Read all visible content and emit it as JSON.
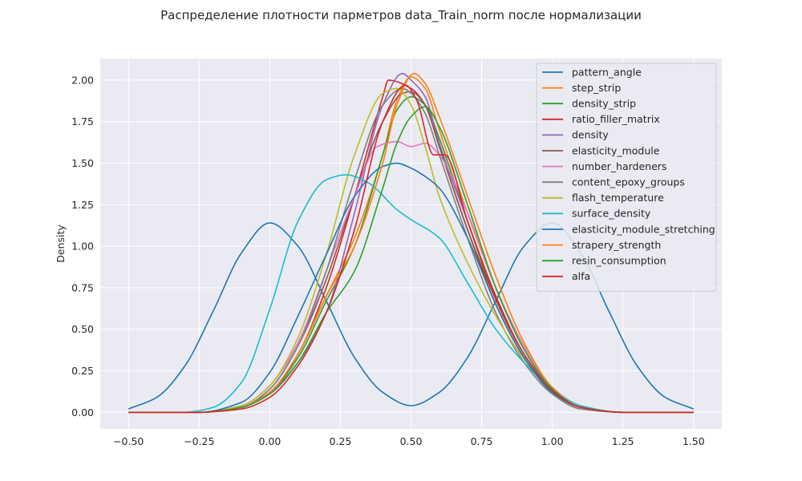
{
  "chart_data": {
    "type": "line",
    "title": "Распределение плотности парметров data_Train_norm после нормализации",
    "xlabel": "",
    "ylabel": "Density",
    "xlim": [
      -0.6,
      1.6
    ],
    "ylim": [
      -0.1,
      2.13
    ],
    "xticks": [
      -0.5,
      -0.25,
      0.0,
      0.25,
      0.5,
      0.75,
      1.0,
      1.25,
      1.5
    ],
    "xtick_labels": [
      "−0.50",
      "−0.25",
      "0.00",
      "0.25",
      "0.50",
      "0.75",
      "1.00",
      "1.25",
      "1.50"
    ],
    "yticks": [
      0.0,
      0.25,
      0.5,
      0.75,
      1.0,
      1.25,
      1.5,
      1.75,
      2.0
    ],
    "ytick_labels": [
      "0.00",
      "0.25",
      "0.50",
      "0.75",
      "1.00",
      "1.25",
      "1.50",
      "1.75",
      "2.00"
    ],
    "grid": true,
    "legend_position": "top-right",
    "background": "#eaeaf2",
    "series": [
      {
        "name": "pattern_angle",
        "color": "#1f77b4",
        "x": [
          -0.5,
          -0.4,
          -0.3,
          -0.2,
          -0.1,
          0.0,
          0.1,
          0.2,
          0.3,
          0.4,
          0.5,
          0.6,
          0.7,
          0.8,
          0.9,
          1.0,
          1.1,
          1.2,
          1.3,
          1.4,
          1.5
        ],
        "y": [
          0.02,
          0.09,
          0.28,
          0.61,
          0.96,
          1.14,
          1.0,
          0.67,
          0.33,
          0.12,
          0.04,
          0.12,
          0.33,
          0.67,
          1.0,
          1.14,
          0.96,
          0.61,
          0.28,
          0.09,
          0.02
        ]
      },
      {
        "name": "step_strip",
        "color": "#ff7f0e",
        "x": [
          -0.5,
          -0.25,
          -0.1,
          0.0,
          0.1,
          0.2,
          0.3,
          0.4,
          0.45,
          0.5,
          0.55,
          0.6,
          0.7,
          0.8,
          0.9,
          1.0,
          1.1,
          1.25,
          1.5
        ],
        "y": [
          0.0,
          0.0,
          0.03,
          0.12,
          0.35,
          0.7,
          1.05,
          1.55,
          1.88,
          2.02,
          1.95,
          1.7,
          1.2,
          0.75,
          0.38,
          0.14,
          0.03,
          0.0,
          0.0
        ]
      },
      {
        "name": "density_strip",
        "color": "#2ca02c",
        "x": [
          -0.5,
          -0.25,
          -0.1,
          0.0,
          0.1,
          0.2,
          0.3,
          0.4,
          0.45,
          0.5,
          0.55,
          0.6,
          0.7,
          0.8,
          0.9,
          1.0,
          1.1,
          1.25,
          1.5
        ],
        "y": [
          0.0,
          0.0,
          0.03,
          0.12,
          0.33,
          0.67,
          1.0,
          1.55,
          1.82,
          1.9,
          1.85,
          1.65,
          1.15,
          0.68,
          0.35,
          0.14,
          0.03,
          0.0,
          0.0
        ]
      },
      {
        "name": "ratio_filler_matrix",
        "color": "#d62728",
        "x": [
          -0.5,
          -0.25,
          -0.1,
          0.0,
          0.1,
          0.2,
          0.3,
          0.4,
          0.42,
          0.5,
          0.55,
          0.6,
          0.7,
          0.8,
          0.9,
          1.0,
          1.1,
          1.25,
          1.5
        ],
        "y": [
          0.0,
          0.0,
          0.03,
          0.12,
          0.35,
          0.75,
          1.3,
          1.9,
          2.0,
          1.95,
          1.85,
          1.6,
          1.1,
          0.68,
          0.35,
          0.14,
          0.03,
          0.0,
          0.0
        ]
      },
      {
        "name": "density",
        "color": "#9467bd",
        "x": [
          -0.5,
          -0.25,
          -0.1,
          0.0,
          0.1,
          0.2,
          0.3,
          0.4,
          0.47,
          0.5,
          0.55,
          0.6,
          0.7,
          0.8,
          0.9,
          1.0,
          1.1,
          1.25,
          1.5
        ],
        "y": [
          0.0,
          0.0,
          0.03,
          0.12,
          0.3,
          0.6,
          1.2,
          1.85,
          2.04,
          2.0,
          1.9,
          1.62,
          1.15,
          0.7,
          0.35,
          0.14,
          0.03,
          0.0,
          0.0
        ]
      },
      {
        "name": "elasticity_module",
        "color": "#8c564b",
        "x": [
          -0.5,
          -0.25,
          -0.1,
          0.0,
          0.1,
          0.2,
          0.3,
          0.4,
          0.47,
          0.5,
          0.55,
          0.6,
          0.7,
          0.8,
          0.9,
          1.0,
          1.1,
          1.25,
          1.5
        ],
        "y": [
          0.0,
          0.0,
          0.03,
          0.14,
          0.4,
          0.8,
          1.3,
          1.75,
          1.92,
          1.93,
          1.85,
          1.6,
          1.1,
          0.65,
          0.33,
          0.12,
          0.03,
          0.0,
          0.0
        ]
      },
      {
        "name": "number_hardeners",
        "color": "#e377c2",
        "x": [
          -0.5,
          -0.25,
          -0.1,
          0.0,
          0.1,
          0.2,
          0.3,
          0.38,
          0.45,
          0.5,
          0.55,
          0.6,
          0.7,
          0.8,
          0.9,
          1.0,
          1.1,
          1.25,
          1.5
        ],
        "y": [
          0.0,
          0.0,
          0.04,
          0.16,
          0.42,
          0.85,
          1.3,
          1.6,
          1.63,
          1.6,
          1.62,
          1.55,
          1.2,
          0.75,
          0.4,
          0.15,
          0.04,
          0.0,
          0.0
        ]
      },
      {
        "name": "content_epoxy_groups",
        "color": "#7f7f7f",
        "x": [
          -0.5,
          -0.25,
          -0.1,
          0.0,
          0.1,
          0.2,
          0.3,
          0.4,
          0.47,
          0.5,
          0.55,
          0.6,
          0.7,
          0.8,
          0.9,
          1.0,
          1.1,
          1.25,
          1.5
        ],
        "y": [
          0.0,
          0.0,
          0.03,
          0.14,
          0.4,
          0.85,
          1.4,
          1.85,
          1.95,
          1.92,
          1.8,
          1.55,
          1.05,
          0.6,
          0.3,
          0.11,
          0.02,
          0.0,
          0.0
        ]
      },
      {
        "name": "flash_temperature",
        "color": "#bcbd22",
        "x": [
          -0.5,
          -0.25,
          -0.1,
          0.0,
          0.1,
          0.2,
          0.3,
          0.4,
          0.45,
          0.5,
          0.55,
          0.6,
          0.7,
          0.8,
          0.9,
          1.0,
          1.1,
          1.25,
          1.5
        ],
        "y": [
          0.0,
          0.0,
          0.04,
          0.16,
          0.45,
          0.95,
          1.55,
          1.92,
          1.95,
          1.85,
          1.6,
          1.3,
          0.9,
          0.58,
          0.32,
          0.13,
          0.03,
          0.0,
          0.0
        ]
      },
      {
        "name": "surface_density",
        "color": "#17becf",
        "x": [
          -0.5,
          -0.3,
          -0.2,
          -0.1,
          0.0,
          0.1,
          0.2,
          0.27,
          0.35,
          0.45,
          0.5,
          0.6,
          0.7,
          0.8,
          0.9,
          1.0,
          1.1,
          1.25,
          1.5
        ],
        "y": [
          0.0,
          0.0,
          0.03,
          0.18,
          0.62,
          1.15,
          1.4,
          1.43,
          1.38,
          1.22,
          1.16,
          1.05,
          0.78,
          0.5,
          0.3,
          0.14,
          0.04,
          0.0,
          0.0
        ]
      },
      {
        "name": "elasticity_module_stretching",
        "color": "#1f77b4",
        "x": [
          -0.5,
          -0.25,
          -0.1,
          0.0,
          0.1,
          0.2,
          0.3,
          0.4,
          0.45,
          0.5,
          0.55,
          0.6,
          0.7,
          0.8,
          0.9,
          1.0,
          1.1,
          1.25,
          1.5
        ],
        "y": [
          0.0,
          0.0,
          0.06,
          0.24,
          0.58,
          0.95,
          1.3,
          1.48,
          1.5,
          1.47,
          1.42,
          1.35,
          1.05,
          0.65,
          0.33,
          0.12,
          0.03,
          0.0,
          0.0
        ]
      },
      {
        "name": "strapery_strength",
        "color": "#ff7f0e",
        "x": [
          -0.5,
          -0.25,
          -0.1,
          0.0,
          0.1,
          0.2,
          0.3,
          0.4,
          0.45,
          0.51,
          0.55,
          0.6,
          0.7,
          0.8,
          0.9,
          1.0,
          1.1,
          1.25,
          1.5
        ],
        "y": [
          0.0,
          0.0,
          0.03,
          0.12,
          0.35,
          0.7,
          1.0,
          1.5,
          1.85,
          2.04,
          1.98,
          1.78,
          1.3,
          0.82,
          0.42,
          0.15,
          0.03,
          0.0,
          0.0
        ]
      },
      {
        "name": "resin_consumption",
        "color": "#2ca02c",
        "x": [
          -0.5,
          -0.25,
          -0.1,
          0.0,
          0.1,
          0.2,
          0.3,
          0.4,
          0.45,
          0.5,
          0.55,
          0.6,
          0.7,
          0.8,
          0.9,
          1.0,
          1.1,
          1.25,
          1.5
        ],
        "y": [
          0.0,
          0.0,
          0.03,
          0.11,
          0.3,
          0.6,
          0.85,
          1.35,
          1.62,
          1.78,
          1.84,
          1.72,
          1.25,
          0.75,
          0.38,
          0.14,
          0.03,
          0.0,
          0.0
        ]
      },
      {
        "name": "alfa",
        "color": "#d62728",
        "x": [
          -0.5,
          -0.25,
          -0.1,
          0.0,
          0.1,
          0.2,
          0.3,
          0.4,
          0.48,
          0.52,
          0.58,
          0.62,
          0.7,
          0.8,
          0.9,
          1.0,
          1.1,
          1.25,
          1.5
        ],
        "y": [
          0.0,
          0.0,
          0.02,
          0.09,
          0.28,
          0.6,
          1.1,
          1.75,
          1.97,
          1.88,
          1.55,
          1.55,
          1.15,
          0.7,
          0.35,
          0.13,
          0.03,
          0.0,
          0.0
        ]
      }
    ]
  }
}
